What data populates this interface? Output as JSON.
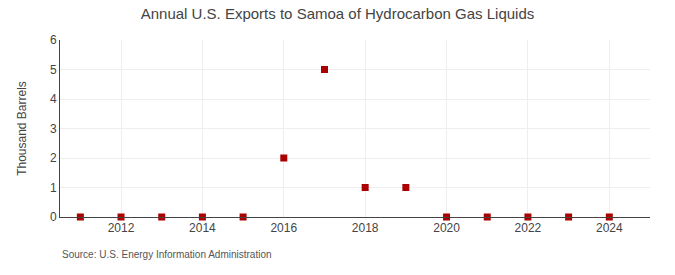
{
  "chart_data": {
    "type": "scatter",
    "title": "Annual U.S. Exports to Samoa of Hydrocarbon Gas Liquids",
    "y_label": "Thousand Barrels",
    "annotations": [
      "Source: U.S. Energy Information Administration"
    ],
    "x": [
      2011,
      2012,
      2013,
      2014,
      2015,
      2016,
      2017,
      2018,
      2019,
      2020,
      2021,
      2022,
      2023,
      2024
    ],
    "values": [
      0,
      0,
      0,
      0,
      0,
      2,
      5,
      1,
      1,
      0,
      0,
      0,
      0,
      0
    ],
    "color": "#AA0000",
    "marker": "square",
    "xlim": [
      2010.5,
      2025.0
    ],
    "ylim": [
      0,
      6
    ],
    "xticks": [
      2012,
      2014,
      2016,
      2018,
      2020,
      2022,
      2024
    ],
    "yticks": [
      0,
      1,
      2,
      3,
      4,
      5,
      6
    ],
    "grid": true
  }
}
